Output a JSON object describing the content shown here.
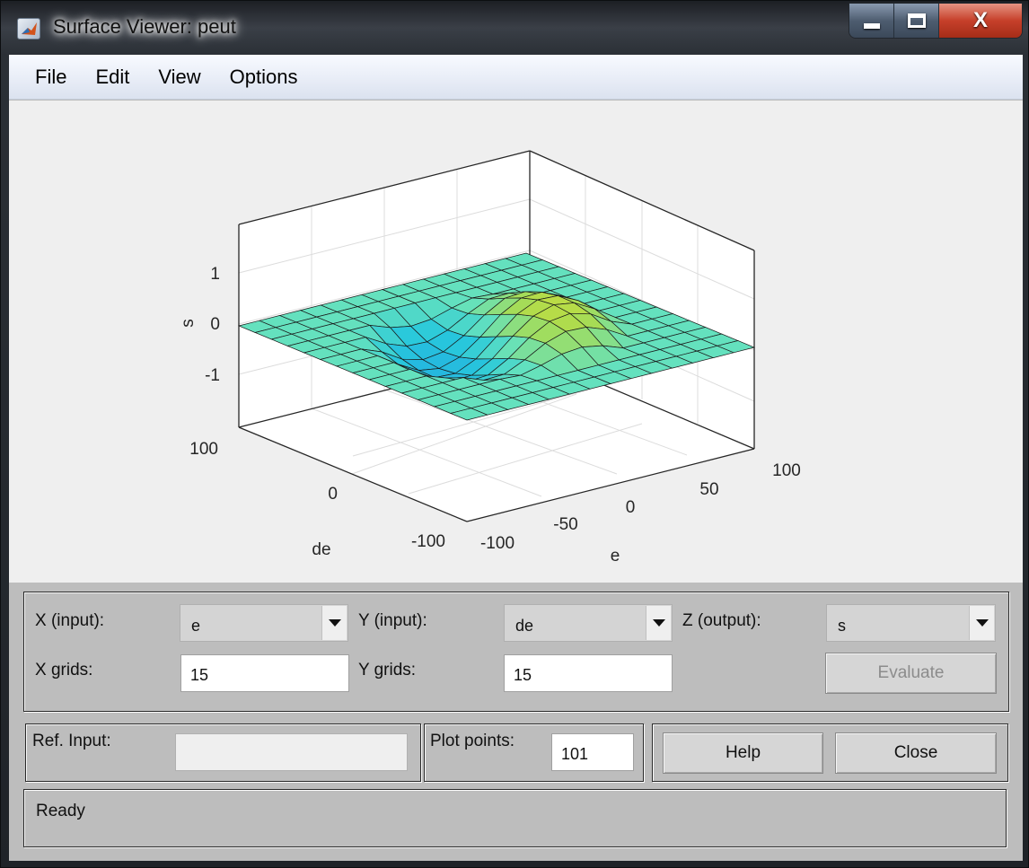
{
  "window": {
    "title": "Surface Viewer: peut"
  },
  "icons": {
    "app": "matlab-icon",
    "minimize": "minimize-icon",
    "maximize": "maximize-icon",
    "close": "close-icon",
    "dropdown": "chevron-down-icon"
  },
  "titlebar_buttons": {
    "close_glyph": "X"
  },
  "menu": [
    "File",
    "Edit",
    "View",
    "Options"
  ],
  "plot": {
    "zlabel": "s",
    "xlabel": "e",
    "ylabel": "de",
    "z_ticks": [
      "1",
      "0",
      "-1"
    ],
    "x_ticks": [
      "-100",
      "-50",
      "0",
      "50",
      "100"
    ],
    "y_ticks": [
      "-100",
      "0",
      "100"
    ]
  },
  "chart_data": {
    "type": "surface",
    "xlabel": "e",
    "ylabel": "de",
    "zlabel": "s",
    "xlim": [
      -100,
      100
    ],
    "ylim": [
      -100,
      100
    ],
    "zlim": [
      -2,
      2
    ],
    "grid": true,
    "colormap": "parula",
    "x_grid_count": 15,
    "y_grid_count": 15
  },
  "controls": {
    "x_input_label": "X (input):",
    "x_input_value": "e",
    "y_input_label": "Y (input):",
    "y_input_value": "de",
    "z_output_label": "Z (output):",
    "z_output_value": "s",
    "x_grids_label": "X grids:",
    "x_grids_value": "15",
    "y_grids_label": "Y grids:",
    "y_grids_value": "15",
    "evaluate_label": "Evaluate",
    "ref_input_label": "Ref. Input:",
    "ref_input_value": "",
    "plot_points_label": "Plot points:",
    "plot_points_value": "101",
    "help_label": "Help",
    "close_label": "Close"
  },
  "status": {
    "text": "Ready"
  }
}
